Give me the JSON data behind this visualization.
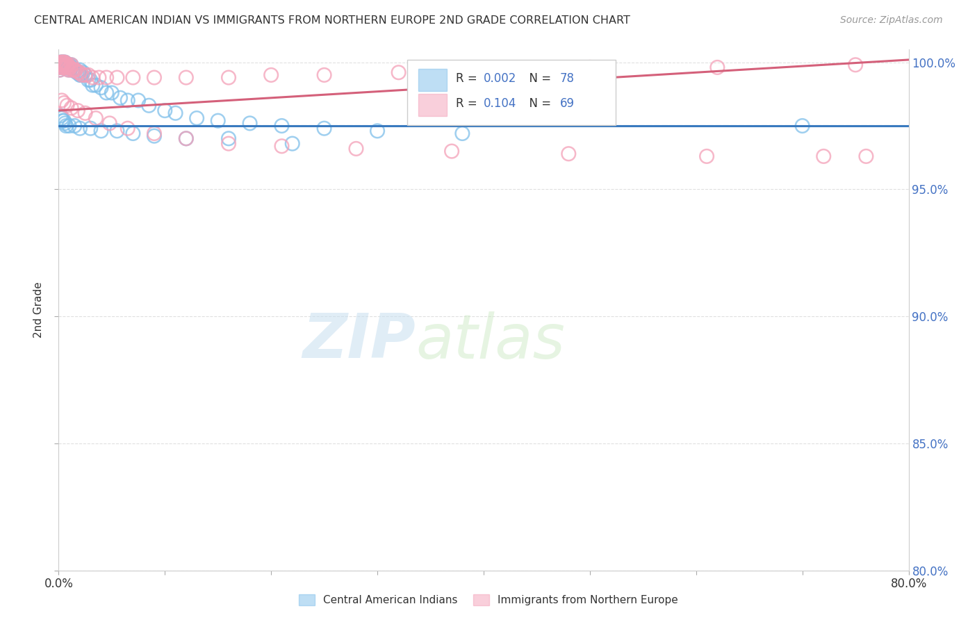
{
  "title": "CENTRAL AMERICAN INDIAN VS IMMIGRANTS FROM NORTHERN EUROPE 2ND GRADE CORRELATION CHART",
  "source": "Source: ZipAtlas.com",
  "ylabel": "2nd Grade",
  "xlim": [
    0.0,
    0.8
  ],
  "ylim": [
    0.8,
    1.005
  ],
  "ytick_values": [
    0.8,
    0.85,
    0.9,
    0.95,
    1.0
  ],
  "xtick_values": [
    0.0,
    0.1,
    0.2,
    0.3,
    0.4,
    0.5,
    0.6,
    0.7,
    0.8
  ],
  "legend_blue_R": "0.002",
  "legend_blue_N": "78",
  "legend_pink_R": "0.104",
  "legend_pink_N": "69",
  "blue_color": "#7fbfea",
  "pink_color": "#f4a0b8",
  "blue_line_color": "#3a7abf",
  "pink_line_color": "#d4607a",
  "blue_line_y0": 0.975,
  "blue_line_y1": 0.975,
  "pink_line_y0": 0.981,
  "pink_line_y1": 1.001,
  "blue_mean_line_y": 0.975,
  "blue_scatter_x": [
    0.001,
    0.001,
    0.001,
    0.002,
    0.002,
    0.002,
    0.003,
    0.003,
    0.003,
    0.004,
    0.004,
    0.004,
    0.005,
    0.005,
    0.006,
    0.006,
    0.007,
    0.007,
    0.008,
    0.008,
    0.009,
    0.009,
    0.01,
    0.01,
    0.011,
    0.012,
    0.012,
    0.013,
    0.014,
    0.015,
    0.016,
    0.017,
    0.018,
    0.019,
    0.02,
    0.02,
    0.021,
    0.022,
    0.023,
    0.025,
    0.028,
    0.03,
    0.032,
    0.035,
    0.04,
    0.045,
    0.05,
    0.058,
    0.065,
    0.075,
    0.085,
    0.1,
    0.11,
    0.13,
    0.15,
    0.18,
    0.21,
    0.25,
    0.3,
    0.38,
    0.002,
    0.003,
    0.004,
    0.005,
    0.006,
    0.007,
    0.01,
    0.015,
    0.02,
    0.03,
    0.04,
    0.055,
    0.07,
    0.09,
    0.12,
    0.16,
    0.22,
    0.7
  ],
  "blue_scatter_y": [
    0.998,
    0.997,
    0.999,
    0.998,
    0.999,
    1.0,
    0.999,
    0.998,
    1.0,
    0.999,
    0.998,
    1.0,
    0.999,
    1.0,
    0.999,
    1.0,
    0.999,
    0.998,
    0.999,
    0.998,
    0.999,
    0.998,
    0.999,
    0.997,
    0.998,
    0.998,
    0.999,
    0.997,
    0.997,
    0.997,
    0.997,
    0.996,
    0.996,
    0.996,
    0.995,
    0.997,
    0.995,
    0.995,
    0.996,
    0.995,
    0.993,
    0.993,
    0.991,
    0.991,
    0.99,
    0.988,
    0.988,
    0.986,
    0.985,
    0.985,
    0.983,
    0.981,
    0.98,
    0.978,
    0.977,
    0.976,
    0.975,
    0.974,
    0.973,
    0.972,
    0.979,
    0.978,
    0.977,
    0.977,
    0.976,
    0.975,
    0.975,
    0.975,
    0.974,
    0.974,
    0.973,
    0.973,
    0.972,
    0.971,
    0.97,
    0.97,
    0.968,
    0.975
  ],
  "pink_scatter_x": [
    0.001,
    0.001,
    0.001,
    0.002,
    0.002,
    0.002,
    0.003,
    0.003,
    0.003,
    0.004,
    0.004,
    0.004,
    0.005,
    0.005,
    0.005,
    0.006,
    0.006,
    0.007,
    0.007,
    0.008,
    0.008,
    0.009,
    0.009,
    0.01,
    0.011,
    0.012,
    0.012,
    0.014,
    0.015,
    0.016,
    0.018,
    0.02,
    0.022,
    0.025,
    0.028,
    0.032,
    0.038,
    0.045,
    0.055,
    0.07,
    0.09,
    0.12,
    0.16,
    0.2,
    0.25,
    0.32,
    0.4,
    0.5,
    0.62,
    0.75,
    0.003,
    0.005,
    0.008,
    0.012,
    0.018,
    0.025,
    0.035,
    0.048,
    0.065,
    0.09,
    0.12,
    0.16,
    0.21,
    0.28,
    0.37,
    0.48,
    0.61,
    0.72,
    0.76
  ],
  "pink_scatter_y": [
    0.998,
    0.997,
    0.999,
    0.998,
    0.999,
    1.0,
    0.999,
    0.998,
    1.0,
    0.999,
    0.999,
    1.0,
    0.999,
    1.0,
    0.998,
    1.0,
    0.999,
    0.999,
    0.998,
    0.999,
    0.998,
    0.999,
    0.997,
    0.998,
    0.998,
    0.997,
    0.999,
    0.997,
    0.997,
    0.997,
    0.996,
    0.996,
    0.995,
    0.995,
    0.995,
    0.994,
    0.994,
    0.994,
    0.994,
    0.994,
    0.994,
    0.994,
    0.994,
    0.995,
    0.995,
    0.996,
    0.997,
    0.998,
    0.998,
    0.999,
    0.985,
    0.984,
    0.983,
    0.982,
    0.981,
    0.98,
    0.978,
    0.976,
    0.974,
    0.972,
    0.97,
    0.968,
    0.967,
    0.966,
    0.965,
    0.964,
    0.963,
    0.963,
    0.963
  ],
  "watermark_zip": "ZIP",
  "watermark_atlas": "atlas",
  "background_color": "#ffffff",
  "grid_color": "#dddddd"
}
